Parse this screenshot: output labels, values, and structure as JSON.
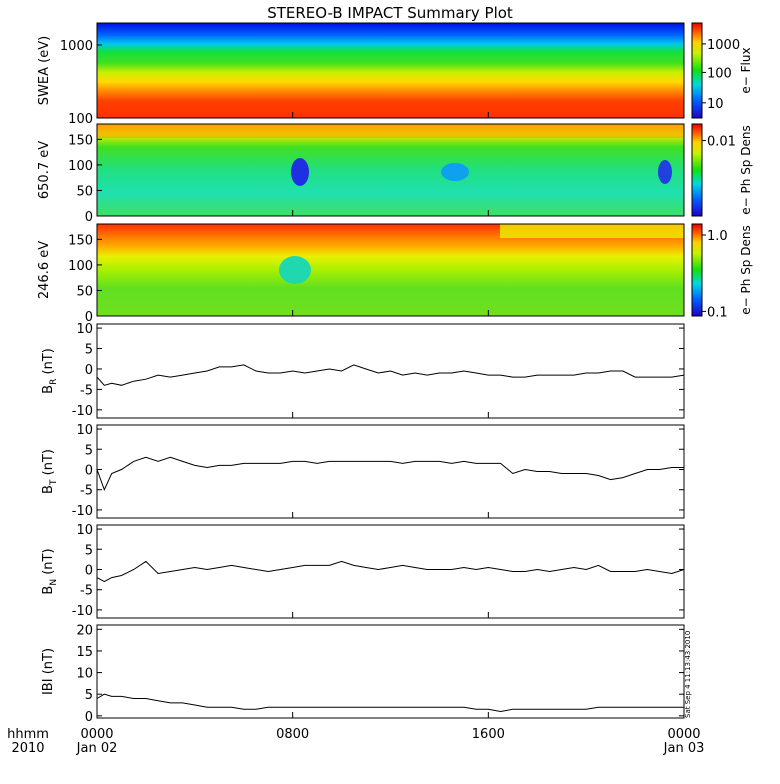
{
  "title": "STEREO-B IMPACT Summary Plot",
  "stamp": "Sat Sep  4 11:13:43 2010",
  "time_axis": {
    "corner_top": "hhmm",
    "corner_bottom": "2010",
    "ticks": [
      {
        "label": "0000",
        "date": "Jan 02",
        "hour": 0
      },
      {
        "label": "0800",
        "date": "",
        "hour": 8
      },
      {
        "label": "1600",
        "date": "",
        "hour": 16
      },
      {
        "label": "0000",
        "date": "Jan 03",
        "hour": 24
      }
    ]
  },
  "chart_data": [
    {
      "type": "heatmap",
      "id": "swea",
      "ylabel": "SWEA (eV)",
      "y_scale": "log",
      "ylim": [
        100,
        2000
      ],
      "y_ticks": [
        "1000",
        "100"
      ],
      "colorbar": {
        "label": "e− Flux",
        "scale": "log",
        "ticks": [
          "1000",
          "100",
          "10"
        ]
      }
    },
    {
      "type": "heatmap",
      "id": "pad650",
      "ylabel": "650.7 eV",
      "ylim": [
        0,
        180
      ],
      "y_ticks": [
        "150",
        "100",
        "50",
        "0"
      ],
      "colorbar": {
        "label": "e− Ph Sp Dens",
        "scale": "log",
        "ticks": [
          "0.01"
        ]
      }
    },
    {
      "type": "heatmap",
      "id": "pad246",
      "ylabel": "246.6 eV",
      "ylim": [
        0,
        180
      ],
      "y_ticks": [
        "150",
        "100",
        "50",
        "0"
      ],
      "colorbar": {
        "label": "e− Ph Sp Dens",
        "scale": "log",
        "ticks": [
          "1.0",
          "0.1"
        ]
      }
    },
    {
      "type": "line",
      "id": "br",
      "ylabel_main": "B",
      "ylabel_sub": "R",
      "ylabel_unit": " (nT)",
      "ylim": [
        -12,
        11
      ],
      "y_ticks": [
        10,
        5,
        0,
        -5,
        -10
      ],
      "x_hours": [
        0,
        0.3,
        0.6,
        1,
        1.5,
        2,
        2.5,
        3,
        3.5,
        4,
        4.5,
        5,
        5.5,
        6,
        6.5,
        7,
        7.5,
        8,
        8.5,
        9,
        9.5,
        10,
        10.5,
        11,
        11.5,
        12,
        12.5,
        13,
        13.5,
        14,
        14.5,
        15,
        15.5,
        16,
        16.5,
        17,
        17.5,
        18,
        18.5,
        19,
        19.5,
        20,
        20.5,
        21,
        21.5,
        22,
        22.5,
        23,
        23.5,
        24
      ],
      "values": [
        -2,
        -4,
        -3.5,
        -4,
        -3,
        -2.5,
        -1.5,
        -2,
        -1.5,
        -1,
        -0.5,
        0.5,
        0.5,
        1,
        -0.5,
        -1,
        -1,
        -0.5,
        -1,
        -0.5,
        0,
        -0.5,
        1,
        0,
        -1,
        -0.5,
        -1.5,
        -1,
        -1.5,
        -1,
        -1,
        -0.5,
        -1,
        -1.5,
        -1.5,
        -2,
        -2,
        -1.5,
        -1.5,
        -1.5,
        -1.5,
        -1,
        -1,
        -0.5,
        -0.5,
        -2,
        -2,
        -2,
        -2,
        -1.5
      ]
    },
    {
      "type": "line",
      "id": "bt",
      "ylabel_main": "B",
      "ylabel_sub": "T",
      "ylabel_unit": " (nT)",
      "ylim": [
        -12,
        11
      ],
      "y_ticks": [
        10,
        5,
        0,
        -5,
        -10
      ],
      "x_hours": [
        0,
        0.3,
        0.6,
        1,
        1.5,
        2,
        2.5,
        3,
        3.5,
        4,
        4.5,
        5,
        5.5,
        6,
        6.5,
        7,
        7.5,
        8,
        8.5,
        9,
        9.5,
        10,
        10.5,
        11,
        11.5,
        12,
        12.5,
        13,
        13.5,
        14,
        14.5,
        15,
        15.5,
        16,
        16.5,
        17,
        17.5,
        18,
        18.5,
        19,
        19.5,
        20,
        20.5,
        21,
        21.5,
        22,
        22.5,
        23,
        23.5,
        24
      ],
      "values": [
        0,
        -5,
        -1,
        0,
        2,
        3,
        2,
        3,
        2,
        1,
        0.5,
        1,
        1,
        1.5,
        1.5,
        1.5,
        1.5,
        2,
        2,
        1.5,
        2,
        2,
        2,
        2,
        2,
        2,
        1.5,
        2,
        2,
        2,
        1.5,
        2,
        1.5,
        1.5,
        1.5,
        -1,
        0,
        -0.5,
        -0.5,
        -1,
        -1,
        -1,
        -1.5,
        -2.5,
        -2,
        -1,
        0,
        0,
        0.5,
        0.5
      ]
    },
    {
      "type": "line",
      "id": "bn",
      "ylabel_main": "B",
      "ylabel_sub": "N",
      "ylabel_unit": " (nT)",
      "ylim": [
        -12,
        11
      ],
      "y_ticks": [
        10,
        5,
        0,
        -5,
        -10
      ],
      "x_hours": [
        0,
        0.3,
        0.6,
        1,
        1.5,
        2,
        2.5,
        3,
        3.5,
        4,
        4.5,
        5,
        5.5,
        6,
        6.5,
        7,
        7.5,
        8,
        8.5,
        9,
        9.5,
        10,
        10.5,
        11,
        11.5,
        12,
        12.5,
        13,
        13.5,
        14,
        14.5,
        15,
        15.5,
        16,
        16.5,
        17,
        17.5,
        18,
        18.5,
        19,
        19.5,
        20,
        20.5,
        21,
        21.5,
        22,
        22.5,
        23,
        23.5,
        24
      ],
      "values": [
        -2,
        -3,
        -2,
        -1.5,
        0,
        2,
        -1,
        -0.5,
        0,
        0.5,
        0,
        0.5,
        1,
        0.5,
        0,
        -0.5,
        0,
        0.5,
        1,
        1,
        1,
        2,
        1,
        0.5,
        0,
        0.5,
        1,
        0.5,
        0,
        0,
        0,
        0.5,
        0,
        0.5,
        0,
        -0.5,
        -0.5,
        0,
        -0.5,
        0,
        0.5,
        0,
        1,
        -0.5,
        -0.5,
        -0.5,
        0,
        -0.5,
        -1,
        0
      ]
    },
    {
      "type": "line",
      "id": "bmag",
      "ylabel_main": "IBI",
      "ylabel_sub": "",
      "ylabel_unit": " (nT)",
      "ylim": [
        -0.5,
        21
      ],
      "y_ticks": [
        20,
        15,
        10,
        5,
        0
      ],
      "x_hours": [
        0,
        0.3,
        0.6,
        1,
        1.5,
        2,
        2.5,
        3,
        3.5,
        4,
        4.5,
        5,
        5.5,
        6,
        6.5,
        7,
        7.5,
        8,
        8.5,
        9,
        9.5,
        10,
        10.5,
        11,
        11.5,
        12,
        12.5,
        13,
        13.5,
        14,
        14.5,
        15,
        15.5,
        16,
        16.5,
        17,
        17.5,
        18,
        18.5,
        19,
        19.5,
        20,
        20.5,
        21,
        21.5,
        22,
        22.5,
        23,
        23.5,
        24
      ],
      "values": [
        4,
        5,
        4.5,
        4.5,
        4,
        4,
        3.5,
        3,
        3,
        2.5,
        2,
        2,
        2,
        1.5,
        1.5,
        2,
        2,
        2,
        2,
        2,
        2,
        2,
        2,
        2,
        2,
        2,
        2,
        2,
        2,
        2,
        2,
        2,
        1.5,
        1.5,
        1,
        1.5,
        1.5,
        1.5,
        1.5,
        1.5,
        1.5,
        1.5,
        2,
        2,
        2,
        2,
        2,
        2,
        2,
        2
      ]
    }
  ]
}
